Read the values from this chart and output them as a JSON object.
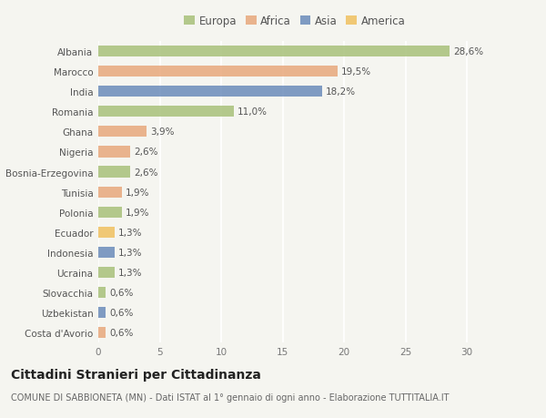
{
  "countries": [
    "Albania",
    "Marocco",
    "India",
    "Romania",
    "Ghana",
    "Nigeria",
    "Bosnia-Erzegovina",
    "Tunisia",
    "Polonia",
    "Ecuador",
    "Indonesia",
    "Ucraina",
    "Slovacchia",
    "Uzbekistan",
    "Costa d'Avorio"
  ],
  "values": [
    28.6,
    19.5,
    18.2,
    11.0,
    3.9,
    2.6,
    2.6,
    1.9,
    1.9,
    1.3,
    1.3,
    1.3,
    0.6,
    0.6,
    0.6
  ],
  "labels": [
    "28,6%",
    "19,5%",
    "18,2%",
    "11,0%",
    "3,9%",
    "2,6%",
    "2,6%",
    "1,9%",
    "1,9%",
    "1,3%",
    "1,3%",
    "1,3%",
    "0,6%",
    "0,6%",
    "0,6%"
  ],
  "continents": [
    "Europa",
    "Africa",
    "Asia",
    "Europa",
    "Africa",
    "Africa",
    "Europa",
    "Africa",
    "Europa",
    "America",
    "Asia",
    "Europa",
    "Europa",
    "Asia",
    "Africa"
  ],
  "continent_colors": {
    "Europa": "#a8c07a",
    "Africa": "#e8a87c",
    "Asia": "#6b8cba",
    "America": "#f0c060"
  },
  "legend_order": [
    "Europa",
    "Africa",
    "Asia",
    "America"
  ],
  "title": "Cittadini Stranieri per Cittadinanza",
  "subtitle": "COMUNE DI SABBIONETA (MN) - Dati ISTAT al 1° gennaio di ogni anno - Elaborazione TUTTITALIA.IT",
  "xlim": [
    0,
    32
  ],
  "xticks": [
    0,
    5,
    10,
    15,
    20,
    25,
    30
  ],
  "background_color": "#f5f5f0",
  "bar_alpha": 0.85,
  "grid_color": "#ffffff",
  "title_fontsize": 10,
  "subtitle_fontsize": 7,
  "label_fontsize": 7.5,
  "tick_fontsize": 7.5,
  "legend_fontsize": 8.5
}
